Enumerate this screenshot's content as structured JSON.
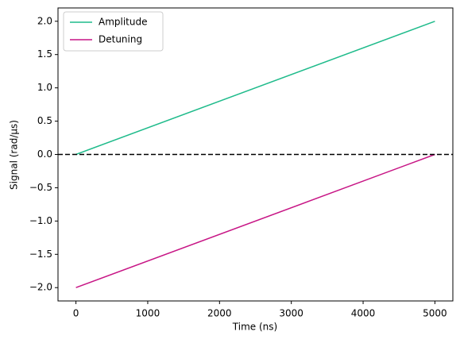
{
  "chart_data": {
    "type": "line",
    "x_label": "Time (ns)",
    "y_label": "Signal (rad/μs)",
    "x": [
      0,
      5000
    ],
    "series": [
      {
        "name": "Amplitude",
        "color": "#1fbb8b",
        "values": [
          0,
          2
        ]
      },
      {
        "name": "Detuning",
        "color": "#c71585",
        "values": [
          -2,
          0
        ]
      }
    ],
    "xlim": [
      -250,
      5250
    ],
    "xticks": [
      0,
      1000,
      2000,
      3000,
      4000,
      5000
    ],
    "ylim": [
      -2.2,
      2.2
    ],
    "yticks": [
      {
        "value": -2,
        "label": "−2.0"
      },
      {
        "value": -1.5,
        "label": "−1.5"
      },
      {
        "value": -1,
        "label": "−1.0"
      },
      {
        "value": -0.5,
        "label": "−0.5"
      },
      {
        "value": 0,
        "label": "0.0"
      },
      {
        "value": 0.5,
        "label": "0.5"
      },
      {
        "value": 1,
        "label": "1.0"
      },
      {
        "value": 1.5,
        "label": "1.5"
      },
      {
        "value": 2,
        "label": "2.0"
      }
    ],
    "hline": {
      "y": 0,
      "color": "#000000"
    },
    "legend": "upper left",
    "grid": false
  }
}
